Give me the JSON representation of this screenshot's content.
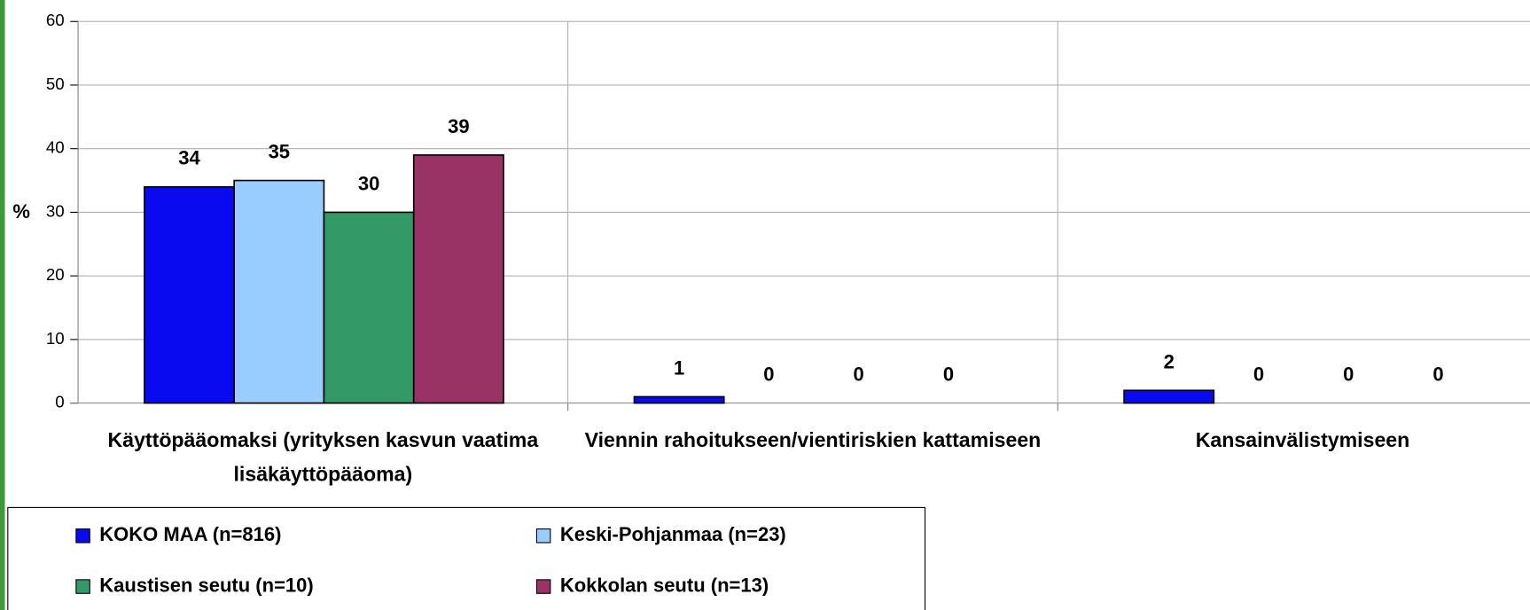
{
  "chart_data": {
    "type": "bar",
    "y_label": "%",
    "categories": [
      "Käyttöpääomaksi (yrityksen kasvun vaatima lisäkäyttöpääoma)",
      "Viennin rahoitukseen/vientiriskien kattamiseen",
      "Kansainvälistymiseen"
    ],
    "series": [
      {
        "name": "KOKO MAA (n=816)",
        "color": "#0a0af0",
        "values": [
          34,
          1,
          2
        ]
      },
      {
        "name": "Keski-Pohjanmaa (n=23)",
        "color": "#99ccff",
        "values": [
          35,
          0,
          0
        ]
      },
      {
        "name": "Kaustisen seutu (n=10)",
        "color": "#339966",
        "values": [
          30,
          0,
          0
        ]
      },
      {
        "name": "Kokkolan seutu (n=13)",
        "color": "#993366",
        "values": [
          39,
          0,
          0
        ]
      }
    ],
    "ylim": [
      0,
      60
    ],
    "yticks": [
      0,
      10,
      20,
      30,
      40,
      50,
      60
    ],
    "grid": true
  }
}
